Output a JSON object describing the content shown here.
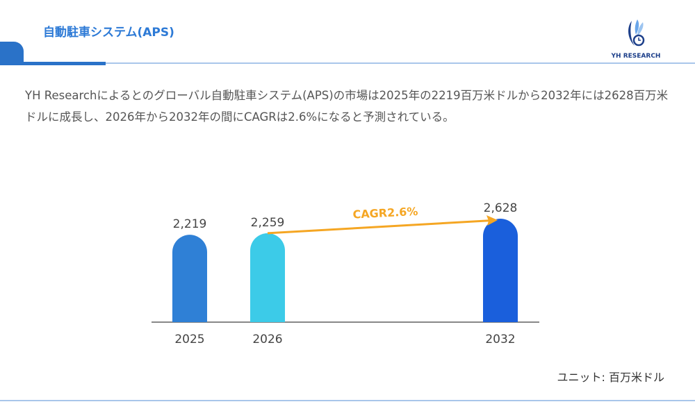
{
  "header": {
    "title": "自動駐車システム(APS)",
    "logo_text": "YH RESEARCH"
  },
  "description": "YH Researchによるとのグローバル自動駐車システム(APS)の市場は2025年の2219百万米ドルから2032年には2628百万米ドルに成長し、2026年から2032年の間にCAGRは2.6%になると予測されている。",
  "unit_label": "ユニット: 百万米ドル",
  "chart_data": {
    "type": "bar",
    "categories": [
      "2025",
      "2026",
      "2032"
    ],
    "values": [
      2219,
      2259,
      2628
    ],
    "data_labels": [
      "2,219",
      "2,259",
      "2,628"
    ],
    "colors": [
      "#2f80d6",
      "#3ccbe8",
      "#1a5fdc"
    ],
    "annotation": {
      "text": "CAGR2.6%",
      "from": "2026",
      "to": "2032",
      "color": "#f5a623"
    },
    "axis_color": "#888888",
    "grid": false
  }
}
